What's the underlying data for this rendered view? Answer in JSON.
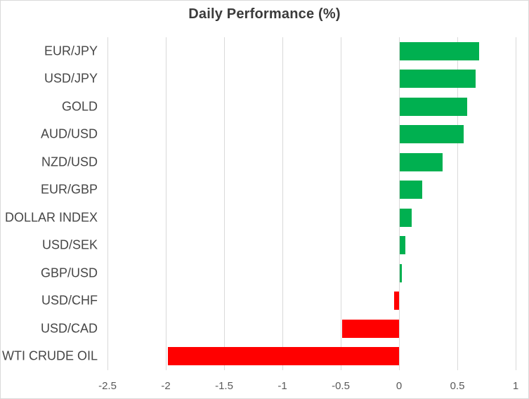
{
  "chart_data": {
    "type": "bar",
    "orientation": "horizontal",
    "title": "Daily Performance (%)",
    "categories": [
      "EUR/JPY",
      "USD/JPY",
      "GOLD",
      "AUD/USD",
      "NZD/USD",
      "EUR/GBP",
      "DOLLAR INDEX",
      "USD/SEK",
      "GBP/USD",
      "USD/CHF",
      "USD/CAD",
      "WTI CRUDE OIL"
    ],
    "values": [
      0.68,
      0.65,
      0.58,
      0.55,
      0.37,
      0.19,
      0.1,
      0.05,
      0.02,
      -0.04,
      -0.49,
      -1.98
    ],
    "xlabel": "",
    "ylabel": "",
    "xlim": [
      -2.5,
      1
    ],
    "x_tick_labels": [
      "-2.5",
      "-2",
      "-1.5",
      "-1",
      "-0.5",
      "0",
      "0.5",
      "1"
    ],
    "x_tick_values": [
      -2.5,
      -2,
      -1.5,
      -1,
      -0.5,
      0,
      0.5,
      1
    ],
    "grid": "vertical-gridlines-on",
    "legend": "none",
    "colors": {
      "positive_bar": "#00B050",
      "negative_bar": "#FF0000",
      "gridline": "#D9D9D9",
      "chart_border": "#D9D9D9",
      "title_text": "#3B3B3B",
      "category_text": "#464646",
      "tick_text": "#595959"
    }
  }
}
